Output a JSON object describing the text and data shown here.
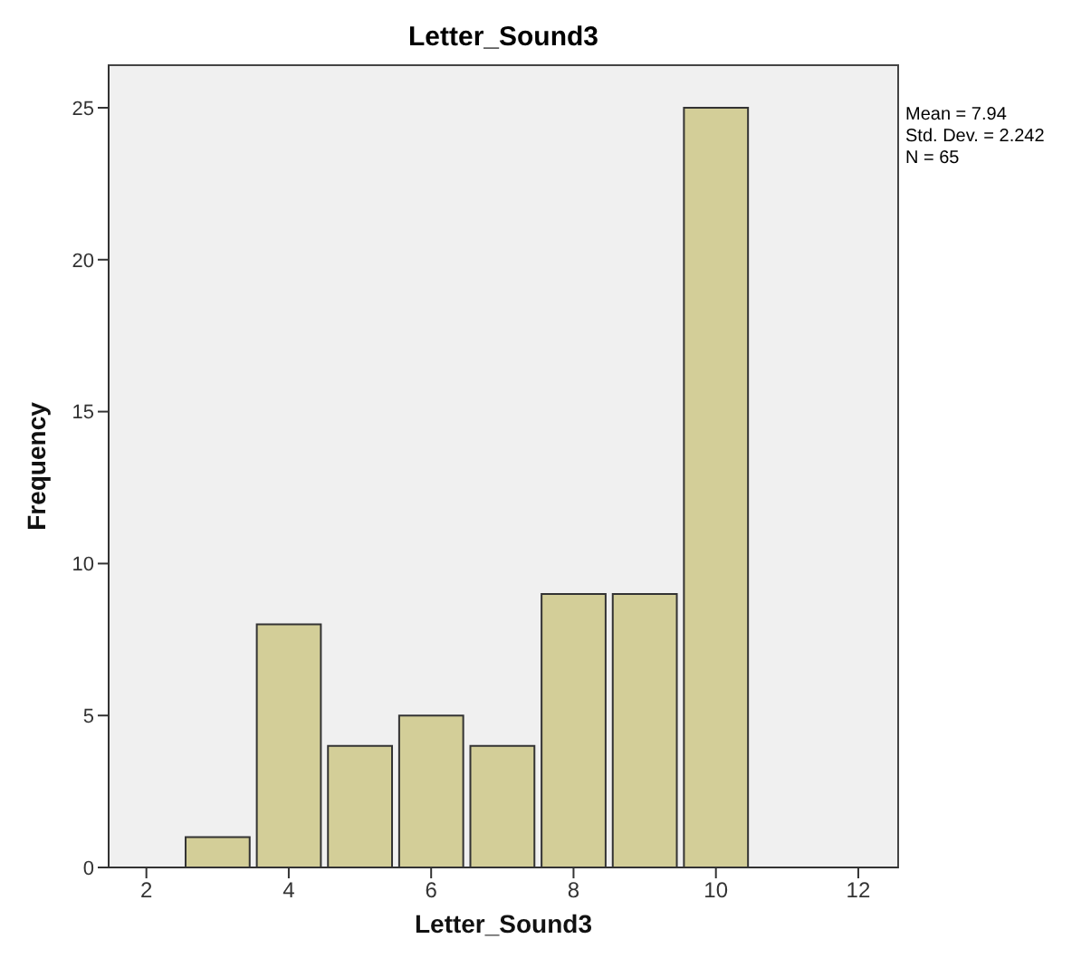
{
  "chart_data": {
    "type": "histogram",
    "title": "Letter_Sound3",
    "xlabel": "Letter_Sound3",
    "ylabel": "Frequency",
    "bins": [
      2.5,
      3.5,
      4.5,
      5.5,
      6.5,
      7.5,
      8.5,
      9.5,
      10.5
    ],
    "values": [
      1,
      8,
      4,
      5,
      4,
      9,
      9,
      25
    ],
    "color": "#d3ce98",
    "xlim": [
      1.47,
      12.56
    ],
    "xticks": [
      2,
      4,
      6,
      8,
      10,
      12
    ],
    "ylim": [
      0,
      26.4
    ],
    "yticks": [
      0,
      5,
      10,
      15,
      20,
      25
    ],
    "annotations": [
      "Mean = 7.94",
      "Std. Dev. = 2.242",
      "N = 65"
    ]
  }
}
